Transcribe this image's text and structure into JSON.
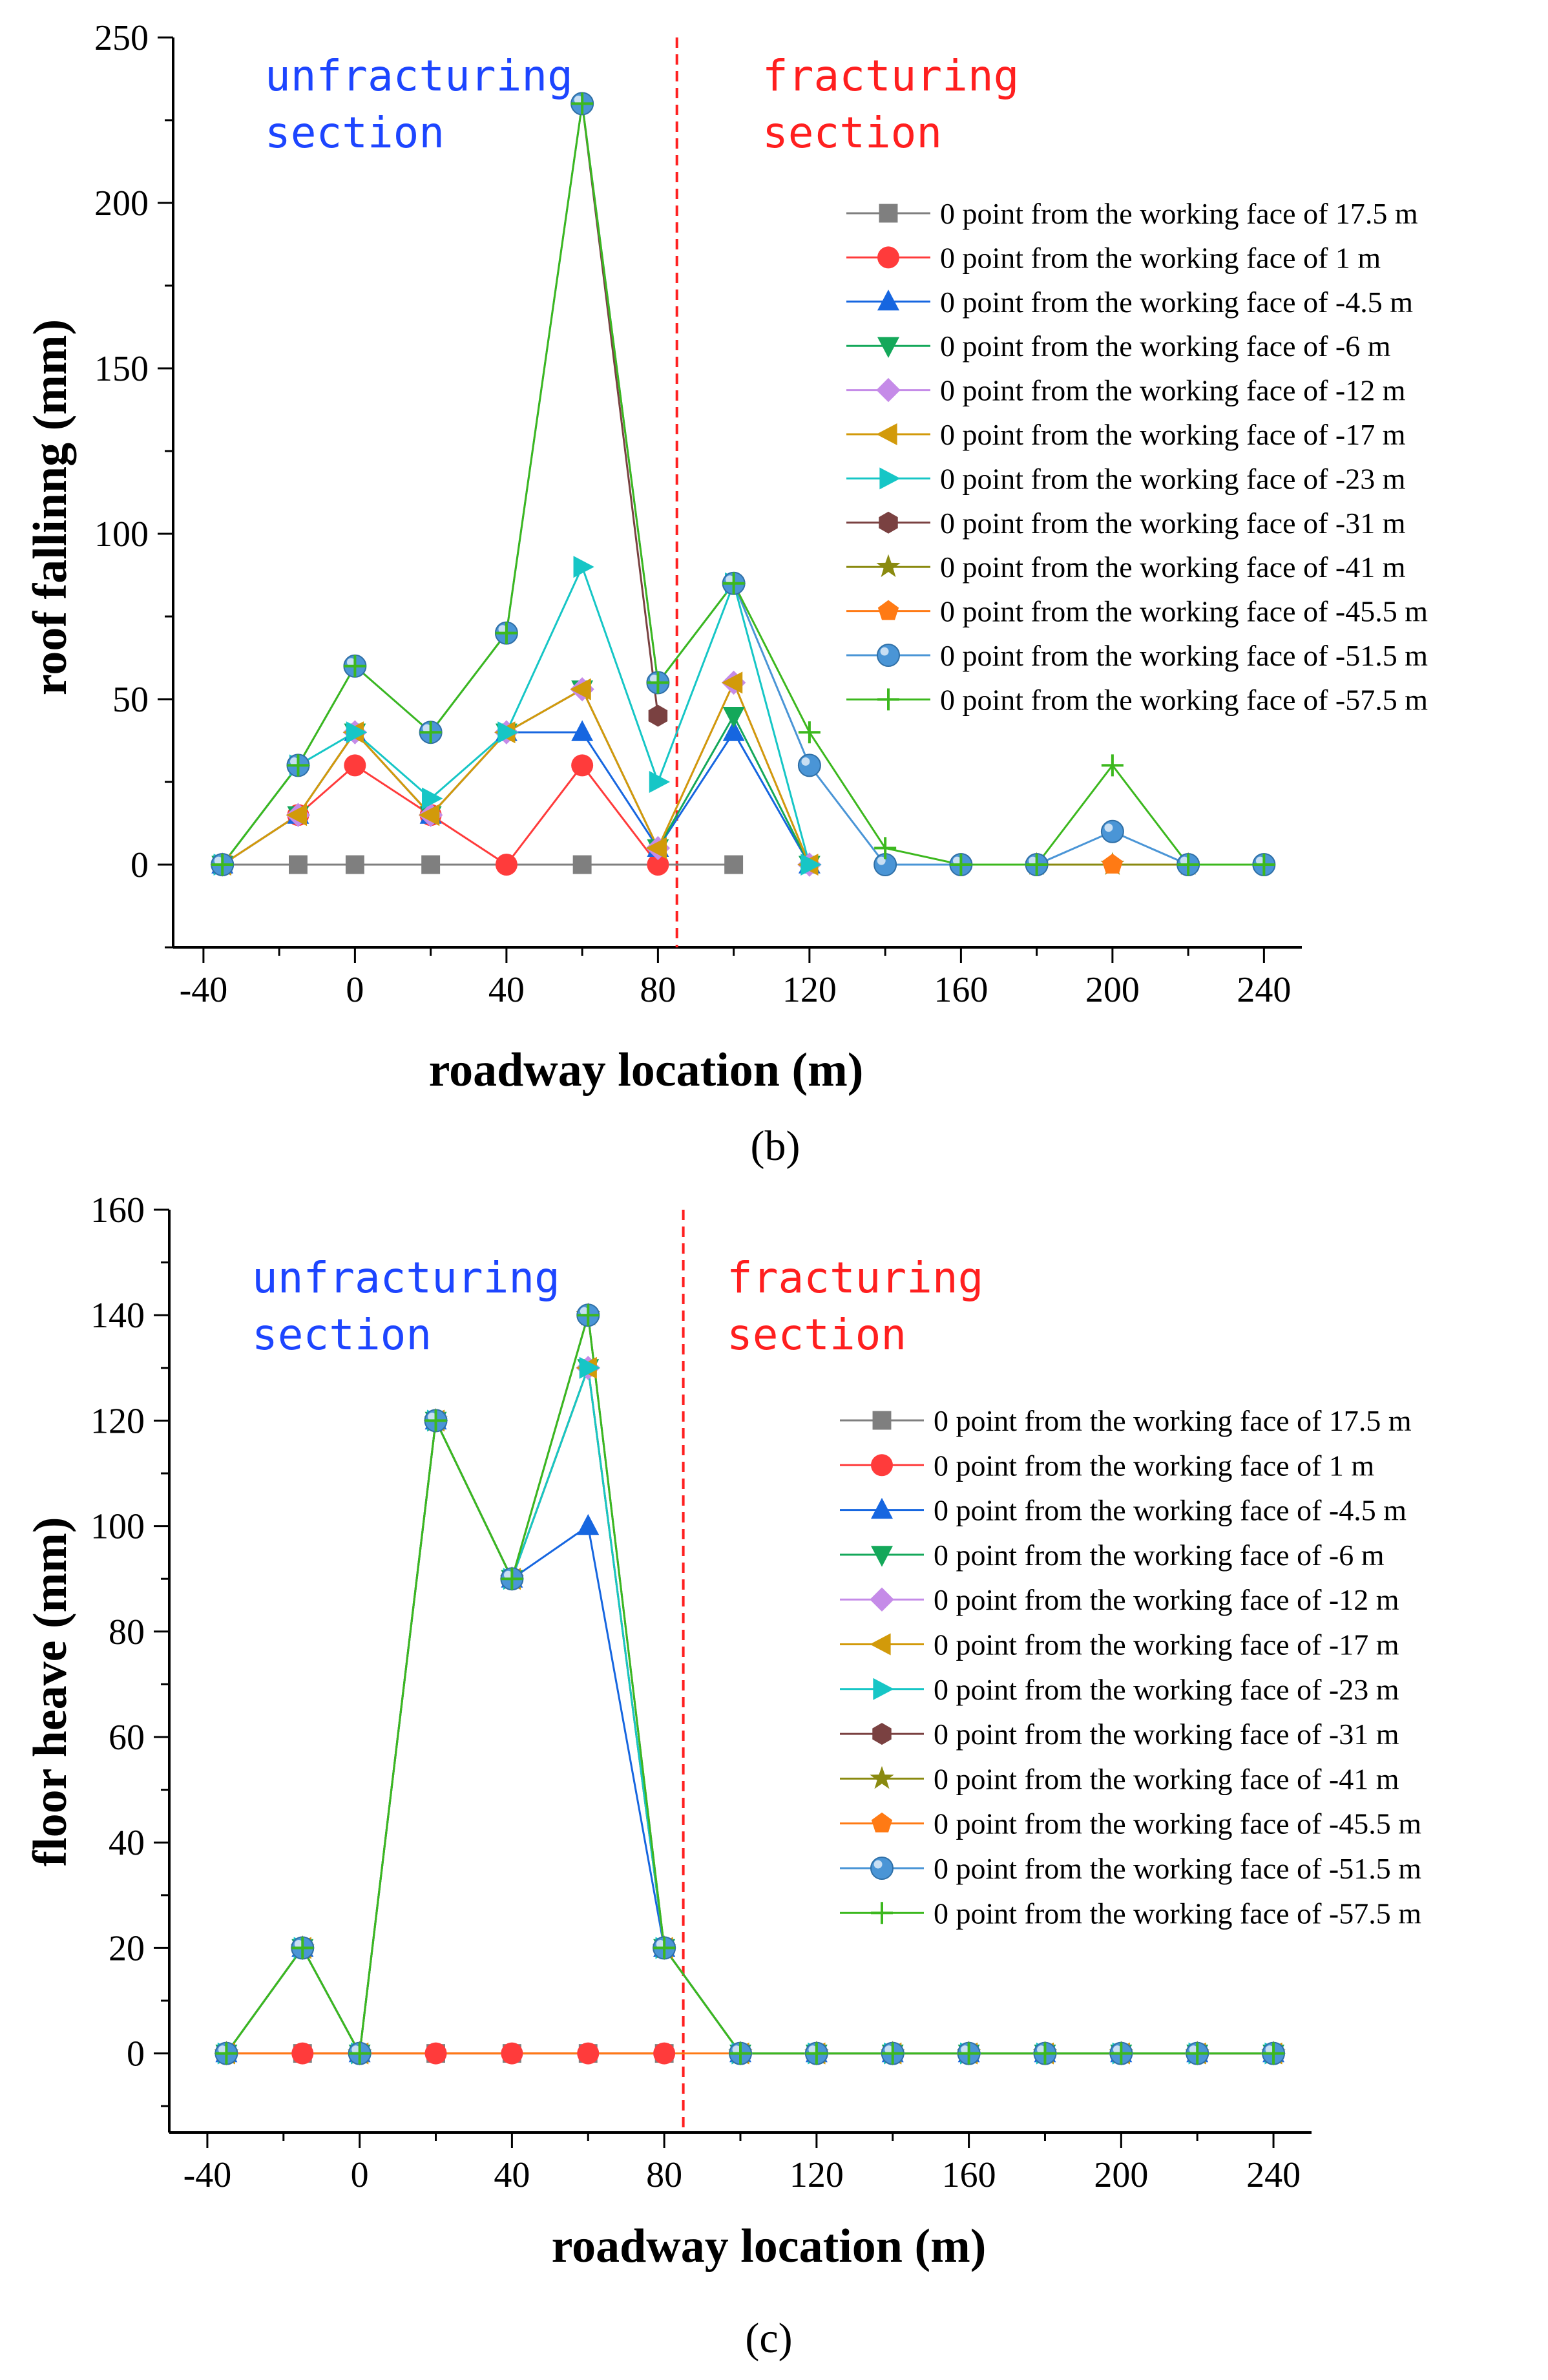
{
  "panels": [
    {
      "panel_label": "(b)",
      "section_left": "unfracturing section",
      "section_right": "fracturing section",
      "colors": {
        "section_left": "#1d45ff",
        "section_right": "#ff1f1f",
        "divider": "#ff1f1f"
      },
      "chart_data": {
        "type": "line",
        "xlabel": "roadway location (m)",
        "ylabel": "roof fallinng (mm)",
        "xlim": [
          -48,
          250
        ],
        "ylim": [
          -25,
          250
        ],
        "xticks": [
          -40,
          0,
          40,
          80,
          120,
          160,
          200,
          240
        ],
        "yticks": [
          0,
          50,
          100,
          150,
          200,
          250
        ],
        "divider_x": 85,
        "legend_position": "right",
        "series": [
          {
            "name": "0 point from the working face of 17.5 m",
            "color": "#7f7f7f",
            "marker": "square",
            "x": [
              -35,
              -15,
              0,
              20,
              60,
              100
            ],
            "y": [
              0,
              0,
              0,
              0,
              0,
              0
            ]
          },
          {
            "name": "0 point from the working face of 1 m",
            "color": "#ff3b3b",
            "marker": "circle",
            "x": [
              -35,
              -15,
              0,
              20,
              40,
              60,
              80
            ],
            "y": [
              0,
              15,
              30,
              15,
              0,
              30,
              0
            ]
          },
          {
            "name": "0 point from the working face of -4.5 m",
            "color": "#1666e0",
            "marker": "triangle-up",
            "x": [
              -35,
              -15,
              0,
              20,
              40,
              60,
              80,
              100,
              120
            ],
            "y": [
              0,
              15,
              40,
              15,
              40,
              40,
              5,
              40,
              0
            ]
          },
          {
            "name": "0 point from the working face of -6 m",
            "color": "#14a85a",
            "marker": "triangle-down",
            "x": [
              -35,
              -15,
              0,
              20,
              40,
              60,
              80,
              100,
              120
            ],
            "y": [
              0,
              15,
              40,
              15,
              40,
              53,
              5,
              45,
              0
            ]
          },
          {
            "name": "0 point from the working face of -12 m",
            "color": "#c58be8",
            "marker": "diamond",
            "x": [
              -35,
              -15,
              0,
              20,
              40,
              60,
              80,
              100,
              120
            ],
            "y": [
              0,
              15,
              40,
              15,
              40,
              53,
              5,
              55,
              0
            ]
          },
          {
            "name": "0 point from the working face of -17 m",
            "color": "#d29a0a",
            "marker": "triangle-left",
            "x": [
              -35,
              -15,
              0,
              20,
              40,
              60,
              80,
              100,
              120
            ],
            "y": [
              0,
              15,
              40,
              15,
              40,
              53,
              5,
              55,
              0
            ]
          },
          {
            "name": "0 point from the working face of -23 m",
            "color": "#16c6c6",
            "marker": "triangle-right",
            "x": [
              -35,
              -15,
              0,
              20,
              40,
              60,
              80,
              100,
              120
            ],
            "y": [
              0,
              30,
              40,
              20,
              40,
              90,
              25,
              85,
              0
            ]
          },
          {
            "name": "0 point from the working face of -31 m",
            "color": "#7a4141",
            "marker": "hexagon",
            "x": [
              60,
              80
            ],
            "y": [
              230,
              45
            ]
          },
          {
            "name": "0 point from the working face of -41 m",
            "color": "#8a8a10",
            "marker": "star",
            "x": [
              180,
              200,
              220
            ],
            "y": [
              0,
              0,
              0
            ]
          },
          {
            "name": "0 point from the working face of -45.5 m",
            "color": "#ff7a14",
            "marker": "pentagon",
            "x": [
              200
            ],
            "y": [
              0
            ]
          },
          {
            "name": "0 point from the working face of -51.5 m",
            "color": "#4a95d6",
            "marker": "ball",
            "x": [
              -35,
              -15,
              0,
              20,
              40,
              60,
              80,
              100,
              120,
              140,
              160,
              180,
              200,
              220,
              240
            ],
            "y": [
              0,
              30,
              60,
              40,
              70,
              230,
              55,
              85,
              30,
              0,
              0,
              0,
              10,
              0,
              0
            ]
          },
          {
            "name": "0 point from the working face of -57.5 m",
            "color": "#3cb81e",
            "marker": "plus",
            "x": [
              -35,
              -15,
              0,
              20,
              40,
              60,
              80,
              100,
              120,
              140,
              160,
              180,
              200,
              220,
              240
            ],
            "y": [
              0,
              30,
              60,
              40,
              70,
              230,
              55,
              85,
              40,
              5,
              0,
              0,
              30,
              0,
              0
            ]
          }
        ]
      }
    },
    {
      "panel_label": "(c)",
      "section_left": "unfracturing section",
      "section_right": "fracturing section",
      "colors": {
        "section_left": "#1d45ff",
        "section_right": "#ff1f1f",
        "divider": "#ff1f1f"
      },
      "chart_data": {
        "type": "line",
        "xlabel": "roadway location (m)",
        "ylabel": "floor heave (mm)",
        "xlim": [
          -50,
          250
        ],
        "ylim": [
          -15,
          160
        ],
        "xticks": [
          -40,
          0,
          40,
          80,
          120,
          160,
          200,
          240
        ],
        "yticks": [
          0,
          20,
          40,
          60,
          80,
          100,
          120,
          140,
          160
        ],
        "divider_x": 85,
        "legend_position": "right",
        "series": [
          {
            "name": "0 point from the working face of 17.5 m",
            "color": "#7f7f7f",
            "marker": "square",
            "x": [
              -15,
              20,
              40,
              60,
              80
            ],
            "y": [
              0,
              0,
              0,
              0,
              0
            ]
          },
          {
            "name": "0 point from the working face of 1 m",
            "color": "#ff3b3b",
            "marker": "circle",
            "x": [
              -35,
              -15,
              0,
              20,
              40,
              60,
              80
            ],
            "y": [
              0,
              0,
              0,
              0,
              0,
              0,
              0
            ]
          },
          {
            "name": "0 point from the working face of -4.5 m",
            "color": "#1666e0",
            "marker": "triangle-up",
            "x": [
              -35,
              -15,
              0,
              20,
              40,
              60,
              80,
              100,
              120,
              140,
              160,
              180,
              200,
              220,
              240
            ],
            "y": [
              0,
              20,
              0,
              120,
              90,
              100,
              20,
              0,
              0,
              0,
              0,
              0,
              0,
              0,
              0
            ]
          },
          {
            "name": "0 point from the working face of -6 m",
            "color": "#14a85a",
            "marker": "triangle-down",
            "x": [
              -35,
              -15,
              0,
              20,
              40,
              60,
              80,
              100,
              120,
              140,
              160,
              180,
              200,
              220,
              240
            ],
            "y": [
              0,
              20,
              0,
              120,
              90,
              130,
              20,
              0,
              0,
              0,
              0,
              0,
              0,
              0,
              0
            ]
          },
          {
            "name": "0 point from the working face of -12 m",
            "color": "#c58be8",
            "marker": "diamond",
            "x": [
              -35,
              -15,
              0,
              20,
              40,
              60,
              80,
              100,
              120,
              140,
              160,
              180,
              200,
              220,
              240
            ],
            "y": [
              0,
              20,
              0,
              120,
              90,
              130,
              20,
              0,
              0,
              0,
              0,
              0,
              0,
              0,
              0
            ]
          },
          {
            "name": "0 point from the working face of -17 m",
            "color": "#d29a0a",
            "marker": "triangle-left",
            "x": [
              -35,
              -15,
              0,
              20,
              40,
              60,
              80,
              100,
              120,
              140,
              160,
              180,
              200,
              220,
              240
            ],
            "y": [
              0,
              20,
              0,
              120,
              90,
              130,
              20,
              0,
              0,
              0,
              0,
              0,
              0,
              0,
              0
            ]
          },
          {
            "name": "0 point from the working face of -23 m",
            "color": "#16c6c6",
            "marker": "triangle-right",
            "x": [
              -35,
              -15,
              0,
              20,
              40,
              60,
              80,
              100,
              120,
              140,
              160,
              180,
              200,
              220,
              240
            ],
            "y": [
              0,
              20,
              0,
              120,
              90,
              130,
              20,
              0,
              0,
              0,
              0,
              0,
              0,
              0,
              0
            ]
          },
          {
            "name": "0 point from the working face of -31 m",
            "color": "#7a4141",
            "marker": "hexagon",
            "x": [
              60
            ],
            "y": [
              140
            ]
          },
          {
            "name": "0 point from the working face of -41 m",
            "color": "#8a8a10",
            "marker": "star",
            "x": [
              -35,
              -15,
              0,
              20,
              40,
              60,
              80,
              100,
              120,
              140,
              160,
              180,
              200,
              220,
              240
            ],
            "y": [
              0,
              20,
              0,
              120,
              90,
              140,
              20,
              0,
              0,
              0,
              0,
              0,
              0,
              0,
              0
            ]
          },
          {
            "name": "0 point from the working face of -45.5 m",
            "color": "#ff7a14",
            "marker": "pentagon",
            "x": [
              -35,
              0,
              100,
              120,
              140,
              160,
              180,
              200,
              220,
              240
            ],
            "y": [
              0,
              0,
              0,
              0,
              0,
              0,
              0,
              0,
              0,
              0
            ]
          },
          {
            "name": "0 point from the working face of -51.5 m",
            "color": "#4a95d6",
            "marker": "ball",
            "x": [
              -35,
              -15,
              0,
              20,
              40,
              60,
              80,
              100,
              120,
              140,
              160,
              180,
              200,
              220,
              240
            ],
            "y": [
              0,
              20,
              0,
              120,
              90,
              140,
              20,
              0,
              0,
              0,
              0,
              0,
              0,
              0,
              0
            ]
          },
          {
            "name": "0 point from the working face of -57.5 m",
            "color": "#3cb81e",
            "marker": "plus",
            "x": [
              -35,
              -15,
              0,
              20,
              40,
              60,
              80,
              100,
              120,
              140,
              160,
              180,
              200,
              220,
              240
            ],
            "y": [
              0,
              20,
              0,
              120,
              90,
              140,
              20,
              0,
              0,
              0,
              0,
              0,
              0,
              0,
              0
            ]
          }
        ]
      }
    }
  ]
}
